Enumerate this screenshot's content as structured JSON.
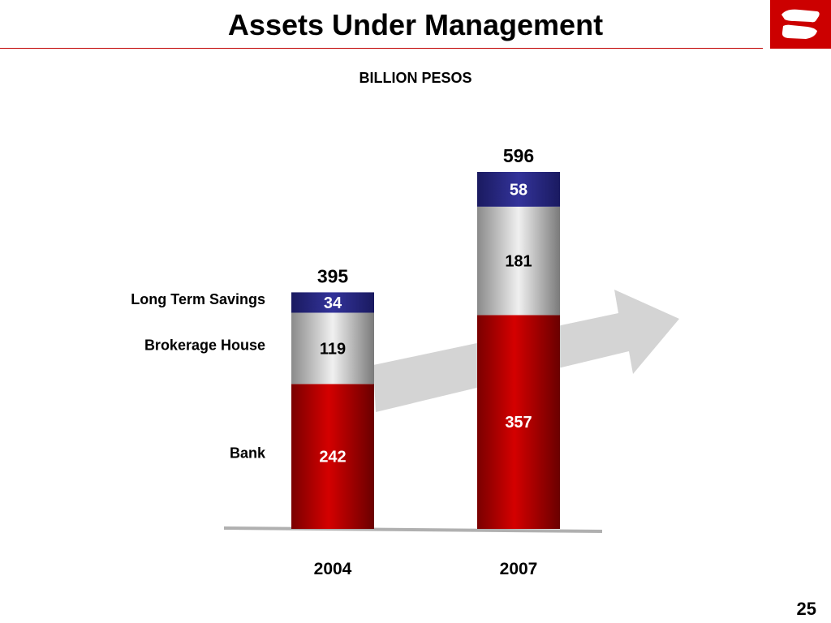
{
  "header": {
    "title": "Assets Under Management",
    "subtitle": "BILLION PESOS",
    "page_number": "25",
    "logo_icon": "bank-logo-icon"
  },
  "colors": {
    "bank": "#cc0000",
    "brokerage": "#c8c8c8",
    "long_term_savings": "#2e2e8c",
    "accent": "#cc0000"
  },
  "chart_data": {
    "type": "bar",
    "stacked": true,
    "title": "Assets Under Management",
    "subtitle": "BILLION PESOS",
    "categories": [
      "2004",
      "2007"
    ],
    "series": [
      {
        "name": "Bank",
        "values": [
          242,
          357
        ]
      },
      {
        "name": "Brokerage House",
        "values": [
          119,
          181
        ]
      },
      {
        "name": "Long Term Savings",
        "values": [
          34,
          58
        ]
      }
    ],
    "totals": [
      395,
      596
    ],
    "legend": "left, aligned to 2004 segments",
    "grid": false,
    "annotation": "growth arrow"
  }
}
